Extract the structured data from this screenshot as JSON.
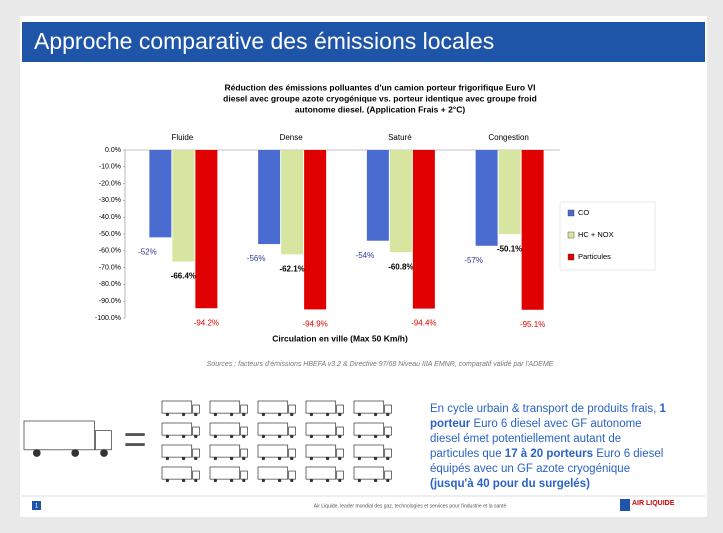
{
  "header": {
    "title": "Approche comparative des émissions locales"
  },
  "chart_data": {
    "type": "bar",
    "title": [
      "Réduction des émissions polluantes d'un camion porteur frigorifique Euro VI",
      "diesel avec groupe azote cryogénique vs. porteur identique avec groupe froid",
      "autonome diesel. (Application Frais + 2°C)"
    ],
    "x_label": "Circulation en ville (Max 50 Km/h)",
    "categories": [
      "Fluide",
      "Dense",
      "Saturé",
      "Congestion"
    ],
    "series": [
      {
        "name": "CO",
        "color": "#4a6cd0",
        "label_color": "#2b3a9a",
        "values": [
          -52,
          -56,
          -54,
          -57
        ],
        "value_labels": [
          "-52%",
          "-56%",
          "-54%",
          "-57%"
        ]
      },
      {
        "name": "HC + NOX",
        "color": "#d6e6a0",
        "label_color": "#000000",
        "values": [
          -66.4,
          -62.1,
          -60.8,
          -50.1
        ],
        "value_labels": [
          "-66.4%",
          "-62.1%",
          "-60.8%",
          "-50.1%"
        ]
      },
      {
        "name": "Particules",
        "color": "#e00000",
        "label_color": "#e00000",
        "values": [
          -94.2,
          -94.9,
          -94.4,
          -95.1
        ],
        "value_labels": [
          "-94.2%",
          "-94.9%",
          "-94.4%",
          "-95.1%"
        ]
      }
    ],
    "ylim": [
      -100,
      0
    ],
    "yticks": [
      {
        "value": 0,
        "label": "0.0%"
      },
      {
        "value": -10,
        "label": "-10.0%"
      },
      {
        "value": -20,
        "label": "-20.0%"
      },
      {
        "value": -30,
        "label": "-30.0%"
      },
      {
        "value": -40,
        "label": "-40.0%"
      },
      {
        "value": -50,
        "label": "-50.0%"
      },
      {
        "value": -60,
        "label": "-60.0%"
      },
      {
        "value": -70,
        "label": "-70.0%"
      },
      {
        "value": -80,
        "label": "-80.0%"
      },
      {
        "value": -90,
        "label": "-90.0%"
      },
      {
        "value": -100,
        "label": "-100.0%"
      }
    ],
    "legend": "right"
  },
  "source": "Sources : facteurs d'émissions HBEFA v3.2 & Directive 97/68 Niveau IIIA EMNR, comparatif validé par l'ADEME",
  "note": [
    [
      {
        "text": "En cycle urbain & transport de produits frais, ",
        "bold": false
      },
      {
        "text": "1",
        "bold": true
      }
    ],
    [
      {
        "text": "porteur",
        "bold": true
      },
      {
        "text": " Euro 6 diesel avec GF autonome",
        "bold": false
      }
    ],
    [
      {
        "text": "diesel émet potentiellement autant de",
        "bold": false
      }
    ],
    [
      {
        "text": "particules que ",
        "bold": false
      },
      {
        "text": "17 à 20 porteurs",
        "bold": true
      },
      {
        "text": " Euro 6 diesel",
        "bold": false
      }
    ],
    [
      {
        "text": "équipés avec un GF azote cryogénique",
        "bold": false
      }
    ],
    [
      {
        "text": "(jusqu'à 40 pour du surgelés)",
        "bold": true
      }
    ]
  ],
  "footer": {
    "page": "1",
    "text": "Air Liquide, leader mondial des gaz, technologies et services pour l'industrie et la santé",
    "logo": "AIR LIQUIDE"
  }
}
